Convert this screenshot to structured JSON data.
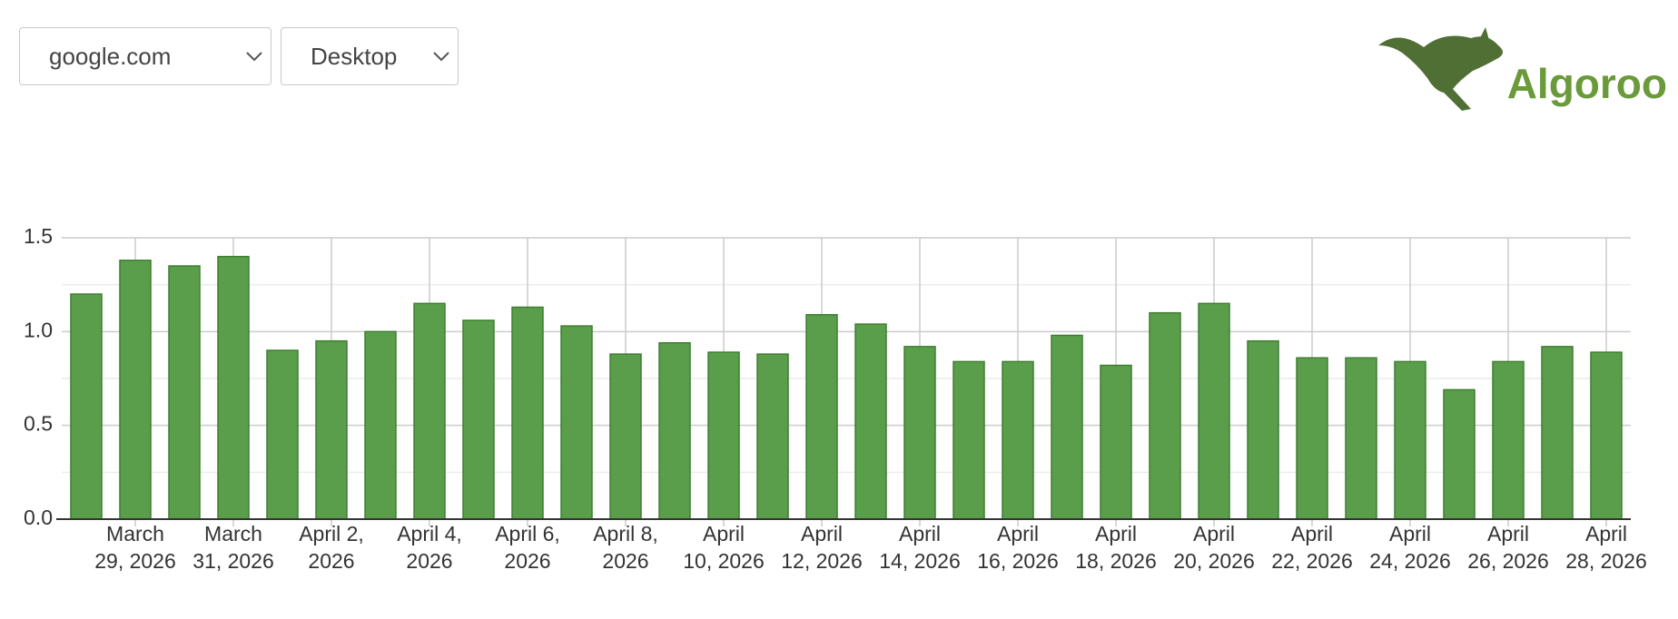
{
  "controls": {
    "site": "google.com",
    "device": "Desktop"
  },
  "logo": "Algoroo",
  "chart_data": {
    "type": "bar",
    "categories": [
      null,
      "March 29, 2026",
      null,
      "March 31, 2026",
      null,
      "April 2, 2026",
      null,
      "April 4, 2026",
      null,
      "April 6, 2026",
      null,
      "April 8, 2026",
      null,
      "April 10, 2026",
      null,
      "April 12, 2026",
      null,
      "April 14, 2026",
      null,
      "April 16, 2026",
      null,
      "April 18, 2026",
      null,
      "April 20, 2026",
      null,
      "April 22, 2026",
      null,
      "April 24, 2026",
      null,
      "April 26, 2026",
      null,
      "April 28, 2026"
    ],
    "values": [
      1.2,
      1.38,
      1.35,
      1.4,
      0.9,
      0.95,
      1.0,
      1.15,
      1.06,
      1.13,
      1.03,
      0.88,
      0.94,
      0.89,
      0.88,
      1.09,
      1.04,
      0.92,
      0.84,
      0.84,
      0.98,
      0.82,
      1.1,
      1.15,
      0.95,
      0.86,
      0.86,
      0.84,
      0.69,
      0.84,
      0.92,
      0.89
    ],
    "color": "#5a9e4b",
    "ylim": [
      0,
      1.5
    ],
    "yticks": [
      {
        "value": 0,
        "label": "0.0"
      },
      0.5,
      {
        "value": 1,
        "label": "1.0"
      },
      1.5
    ],
    "grid": true
  }
}
